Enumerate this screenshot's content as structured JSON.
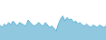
{
  "chart_data": {
    "type": "area",
    "series": [
      {
        "type": "area",
        "color": "#90c8e0",
        "values": [
          30,
          25,
          32,
          28,
          35,
          30,
          38,
          32,
          28,
          35,
          32,
          30,
          28,
          40,
          35,
          30,
          28,
          32,
          35,
          30,
          28,
          35,
          30,
          25,
          28,
          22,
          18,
          32,
          42,
          48,
          38,
          45,
          40,
          42,
          35,
          38,
          32,
          35,
          30,
          28,
          32,
          28,
          25,
          30,
          28,
          25,
          30,
          28,
          25,
          28
        ]
      },
      {
        "type": "line",
        "color": "#5aaed4",
        "values": [
          30,
          25,
          32,
          28,
          35,
          30,
          38,
          32,
          28,
          35,
          32,
          30,
          28,
          40,
          35,
          30,
          28,
          32,
          35,
          30,
          28,
          35,
          30,
          25,
          28,
          22,
          18,
          32,
          42,
          48,
          38,
          45,
          40,
          42,
          35,
          38,
          32,
          35,
          30,
          28,
          32,
          28,
          25,
          30,
          28,
          25,
          30,
          28,
          25,
          28
        ]
      }
    ],
    "xlim": [
      0,
      49
    ],
    "ylim": [
      0,
      80
    ],
    "tick_labels": false,
    "grid": false
  }
}
